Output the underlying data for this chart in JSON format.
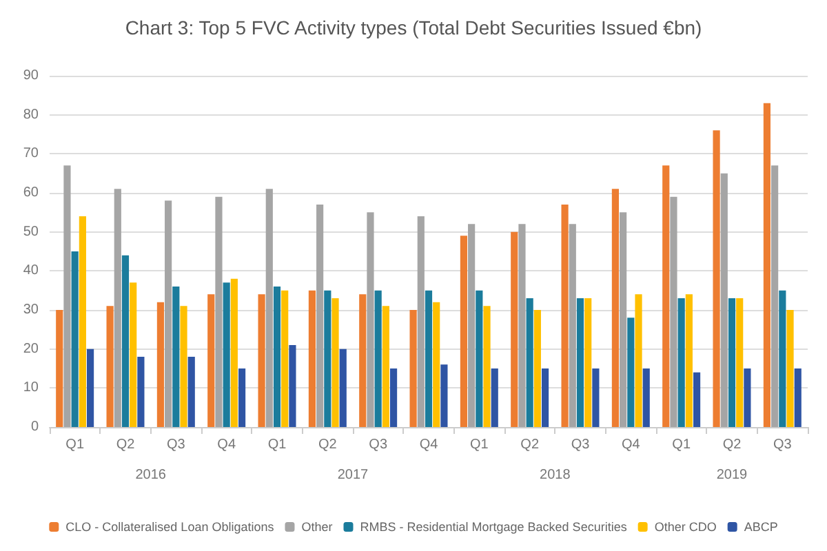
{
  "chart_data": {
    "type": "bar",
    "title": "Chart 3: Top 5 FVC Activity types (Total Debt Securities Issued €bn)",
    "categories": [
      "Q1",
      "Q2",
      "Q3",
      "Q4",
      "Q1",
      "Q2",
      "Q3",
      "Q4",
      "Q1",
      "Q2",
      "Q3",
      "Q4",
      "Q1",
      "Q2",
      "Q3"
    ],
    "series": [
      {
        "name": "CLO - Collateralised Loan Obligations",
        "color": "#ed7d31",
        "values": [
          30,
          31,
          32,
          34,
          34,
          35,
          34,
          30,
          49,
          50,
          57,
          61,
          67,
          76,
          83
        ]
      },
      {
        "name": "Other",
        "color": "#a5a5a5",
        "values": [
          67,
          61,
          58,
          59,
          61,
          57,
          55,
          54,
          52,
          52,
          52,
          55,
          59,
          65,
          67
        ]
      },
      {
        "name": "RMBS - Residential Mortgage Backed Securities",
        "color": "#1b7c9c",
        "values": [
          45,
          44,
          36,
          37,
          36,
          35,
          35,
          35,
          35,
          33,
          33,
          28,
          33,
          33,
          35
        ]
      },
      {
        "name": "Other CDO",
        "color": "#ffc000",
        "values": [
          54,
          37,
          31,
          38,
          35,
          33,
          31,
          32,
          31,
          30,
          33,
          34,
          34,
          33,
          30
        ]
      },
      {
        "name": "ABCP",
        "color": "#2f55a4",
        "values": [
          20,
          18,
          18,
          15,
          21,
          20,
          15,
          16,
          15,
          15,
          15,
          15,
          14,
          15,
          15
        ]
      }
    ],
    "annotations": [
      "2016",
      "2017",
      "2018",
      "2019"
    ],
    "ylim": [
      0,
      90
    ],
    "yticks": [
      0,
      10,
      20,
      30,
      40,
      50,
      60,
      70,
      80,
      90
    ],
    "grid": "y",
    "legend": "bottom"
  }
}
